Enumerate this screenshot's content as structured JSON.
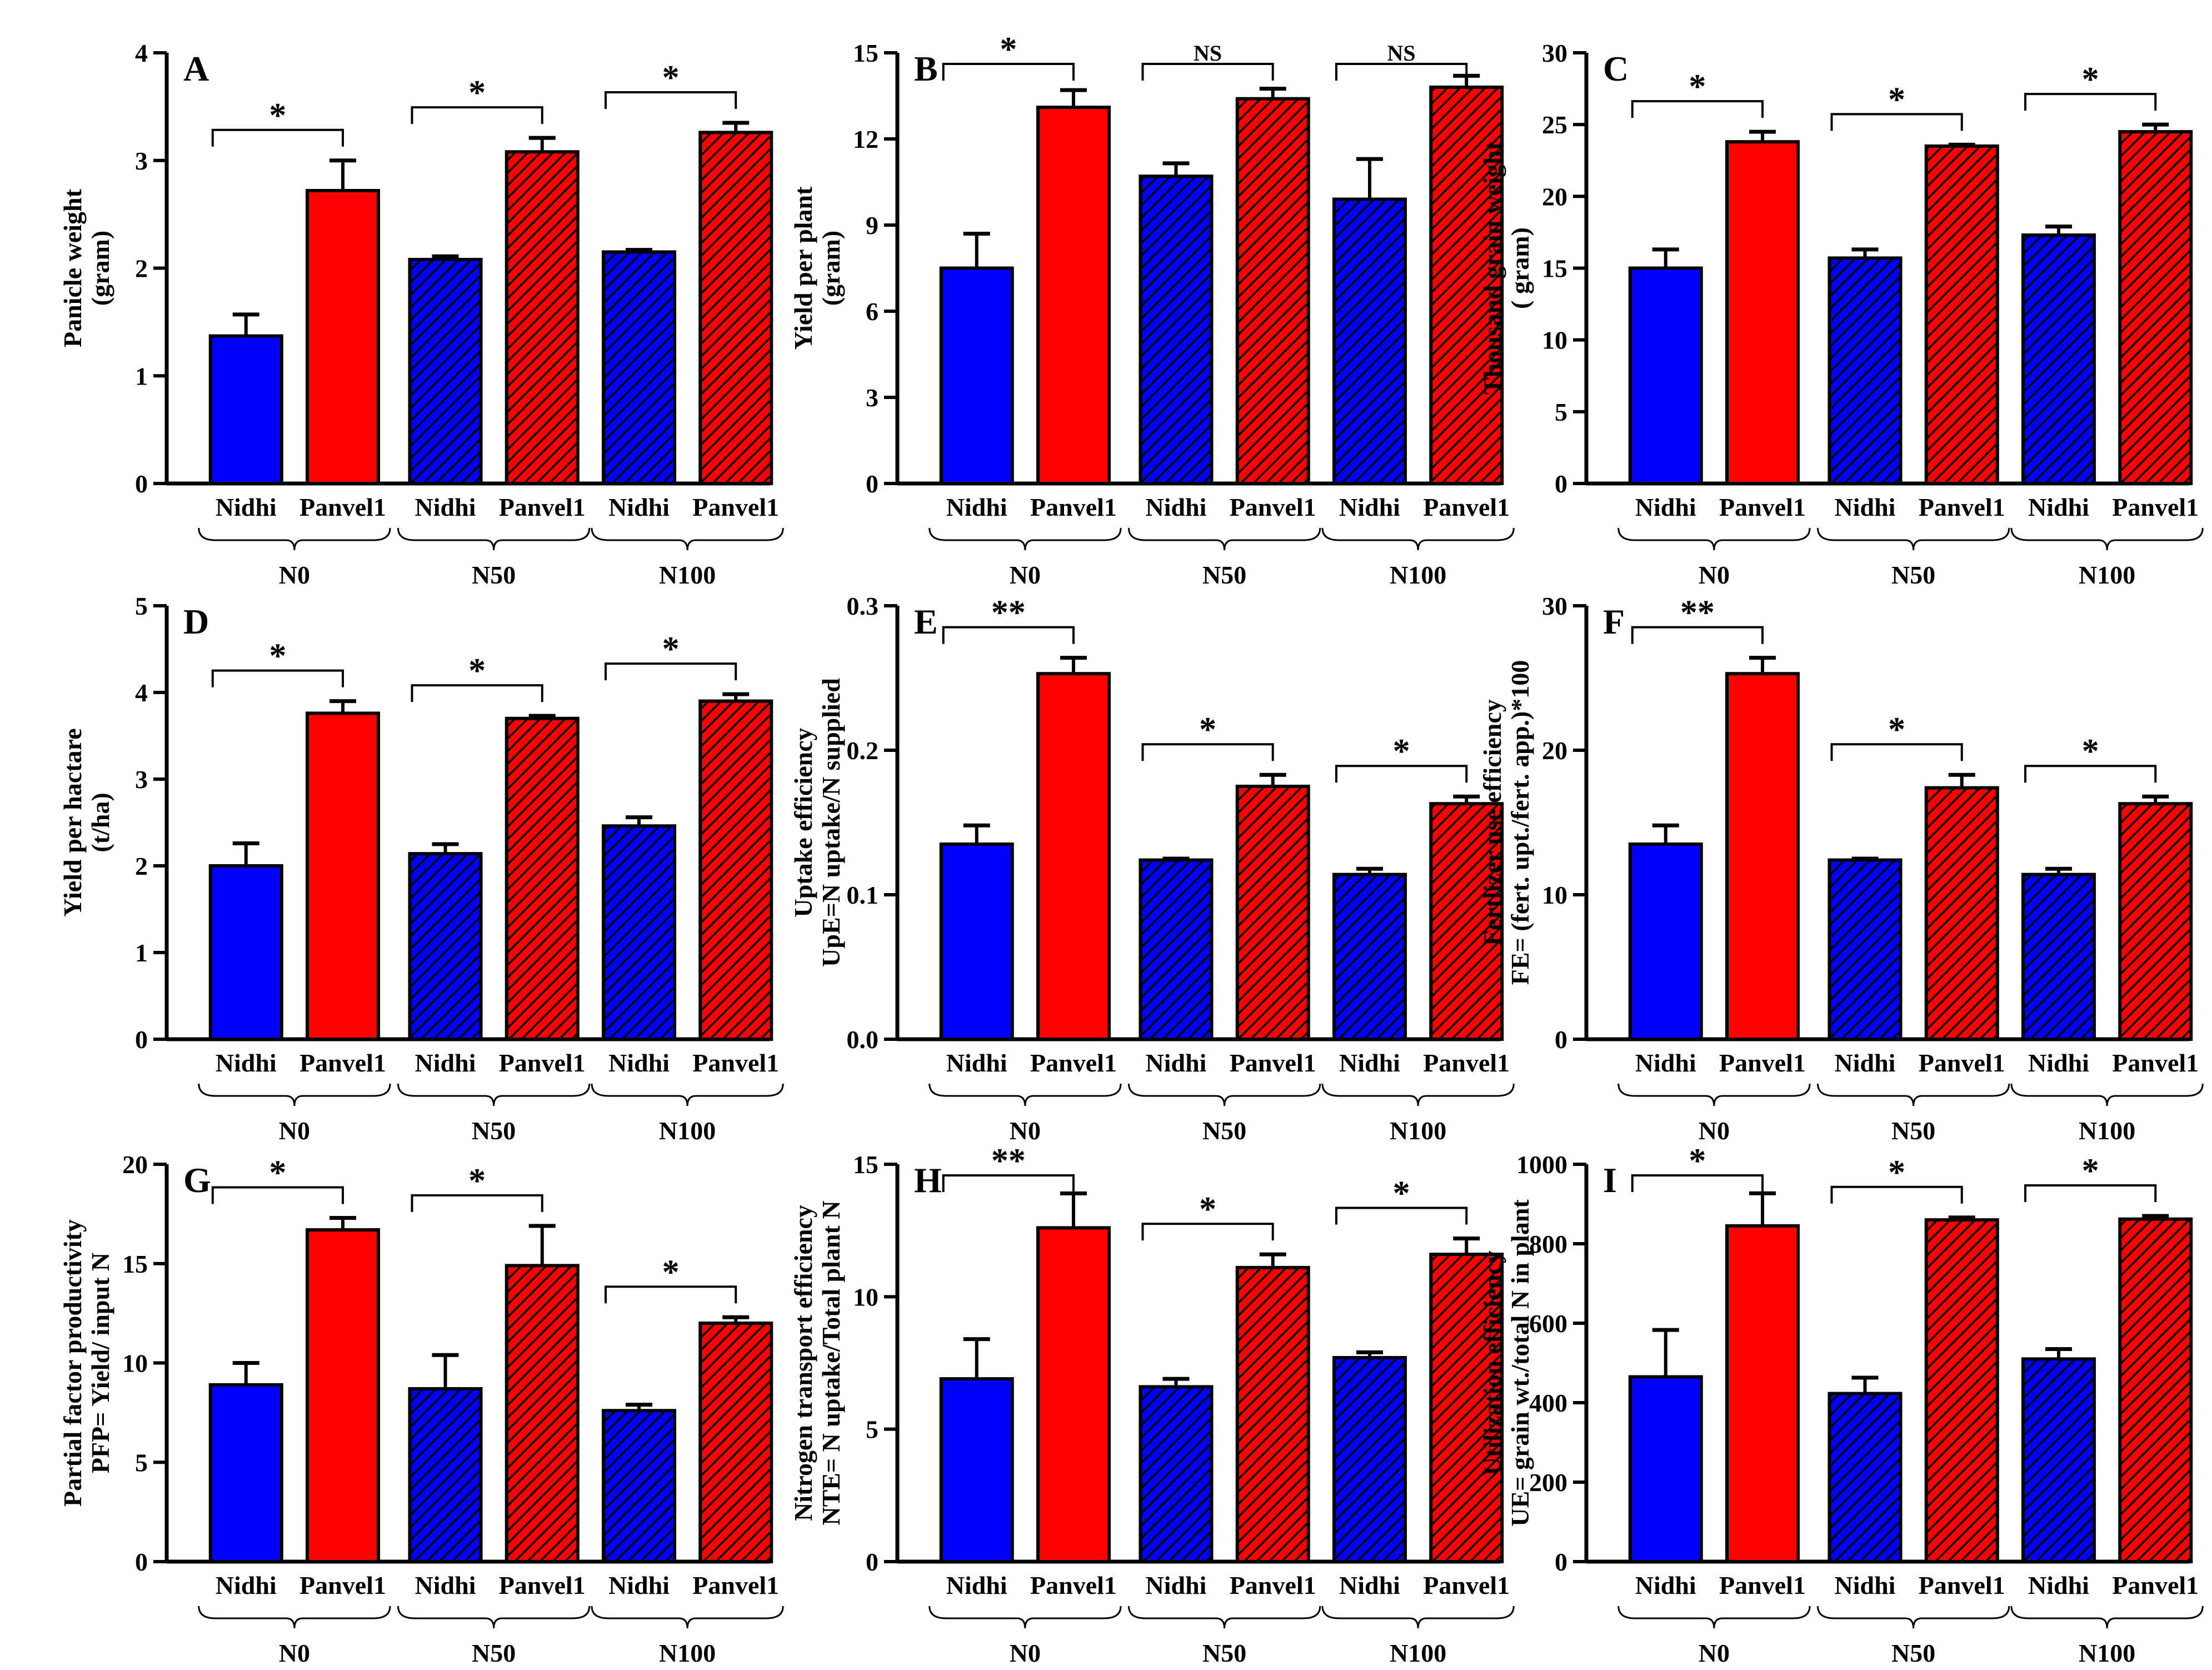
{
  "figure": {
    "colors": {
      "nidhi": "#0000ff",
      "panvel": "#ff0000",
      "axis": "#000000",
      "background": "#ffffff"
    },
    "hatch_note": "N50 and N100 bars are hatched with diagonal black lines"
  },
  "chart_data": [
    {
      "id": "A",
      "type": "bar",
      "panel_label": "A",
      "ylabel": "Panicle weight\n(gram)",
      "ylim": [
        0,
        4
      ],
      "yticks": [
        0,
        1,
        2,
        3,
        4
      ],
      "groups": [
        "N0",
        "N50",
        "N100"
      ],
      "categories": [
        "Nidhi",
        "Panvel1",
        "Nidhi",
        "Panvel1",
        "Nidhi",
        "Panvel1"
      ],
      "values": [
        1.37,
        2.72,
        2.08,
        3.08,
        2.15,
        3.26
      ],
      "errors": [
        0.2,
        0.28,
        0.03,
        0.13,
        0.02,
        0.09
      ],
      "significance": [
        "*",
        "*",
        "*"
      ]
    },
    {
      "id": "B",
      "type": "bar",
      "panel_label": "B",
      "ylabel": "Yield per plant\n(gram)",
      "ylim": [
        0,
        15
      ],
      "yticks": [
        0,
        3,
        6,
        9,
        12,
        15
      ],
      "groups": [
        "N0",
        "N50",
        "N100"
      ],
      "categories": [
        "Nidhi",
        "Panvel1",
        "Nidhi",
        "Panvel1",
        "Nidhi",
        "Panvel1"
      ],
      "values": [
        7.5,
        13.1,
        10.7,
        13.4,
        9.9,
        13.8
      ],
      "errors": [
        1.2,
        0.6,
        0.45,
        0.35,
        1.4,
        0.4
      ],
      "significance": [
        "*",
        "NS",
        "NS"
      ]
    },
    {
      "id": "C",
      "type": "bar",
      "panel_label": "C",
      "ylabel": "Thousand grain weight\n( gram)",
      "ylim": [
        0,
        30
      ],
      "yticks": [
        0,
        5,
        10,
        15,
        20,
        25,
        30
      ],
      "groups": [
        "N0",
        "N50",
        "N100"
      ],
      "categories": [
        "Nidhi",
        "Panvel1",
        "Nidhi",
        "Panvel1",
        "Nidhi",
        "Panvel1"
      ],
      "values": [
        15.0,
        23.8,
        15.7,
        23.5,
        17.3,
        24.5
      ],
      "errors": [
        1.3,
        0.7,
        0.6,
        0.1,
        0.6,
        0.5
      ],
      "significance": [
        "*",
        "*",
        "*"
      ]
    },
    {
      "id": "D",
      "type": "bar",
      "panel_label": "D",
      "ylabel": "Yield per hactare\n(t/ha)",
      "ylim": [
        0,
        5
      ],
      "yticks": [
        0,
        1,
        2,
        3,
        4,
        5
      ],
      "groups": [
        "N0",
        "N50",
        "N100"
      ],
      "categories": [
        "Nidhi",
        "Panvel1",
        "Nidhi",
        "Panvel1",
        "Nidhi",
        "Panvel1"
      ],
      "values": [
        2.0,
        3.76,
        2.14,
        3.7,
        2.46,
        3.9
      ],
      "errors": [
        0.26,
        0.14,
        0.11,
        0.03,
        0.1,
        0.08
      ],
      "significance": [
        "*",
        "*",
        "*"
      ]
    },
    {
      "id": "E",
      "type": "bar",
      "panel_label": "E",
      "ylabel": "Uptake efficiency\nUpE=N uptake/N supplied",
      "ylim": [
        0,
        0.3
      ],
      "yticks": [
        0.0,
        0.1,
        0.2,
        0.3
      ],
      "groups": [
        "N0",
        "N50",
        "N100"
      ],
      "categories": [
        "Nidhi",
        "Panvel1",
        "Nidhi",
        "Panvel1",
        "Nidhi",
        "Panvel1"
      ],
      "values": [
        0.135,
        0.253,
        0.124,
        0.175,
        0.114,
        0.163
      ],
      "errors": [
        0.013,
        0.011,
        0.001,
        0.008,
        0.004,
        0.005
      ],
      "significance": [
        "**",
        "*",
        "*"
      ]
    },
    {
      "id": "F",
      "type": "bar",
      "panel_label": "F",
      "ylabel": "Fertlizer use efficiency\nFE= (fert. upt./fert. app.)*100",
      "ylim": [
        0,
        30
      ],
      "yticks": [
        0,
        10,
        20,
        30
      ],
      "groups": [
        "N0",
        "N50",
        "N100"
      ],
      "categories": [
        "Nidhi",
        "Panvel1",
        "Nidhi",
        "Panvel1",
        "Nidhi",
        "Panvel1"
      ],
      "values": [
        13.5,
        25.3,
        12.4,
        17.4,
        11.4,
        16.3
      ],
      "errors": [
        1.3,
        1.1,
        0.1,
        0.9,
        0.4,
        0.5
      ],
      "significance": [
        "**",
        "*",
        "*"
      ]
    },
    {
      "id": "G",
      "type": "bar",
      "panel_label": "G",
      "ylabel": "Partial factor productivity\nPFP= Yield/ input N",
      "ylim": [
        0,
        20
      ],
      "yticks": [
        0,
        5,
        10,
        15,
        20
      ],
      "groups": [
        "N0",
        "N50",
        "N100"
      ],
      "categories": [
        "Nidhi",
        "Panvel1",
        "Nidhi",
        "Panvel1",
        "Nidhi",
        "Panvel1"
      ],
      "values": [
        8.9,
        16.7,
        8.7,
        14.9,
        7.6,
        12.0
      ],
      "errors": [
        1.1,
        0.6,
        1.7,
        2.0,
        0.3,
        0.3
      ],
      "significance": [
        "*",
        "*",
        "*"
      ]
    },
    {
      "id": "H",
      "type": "bar",
      "panel_label": "H",
      "ylabel": "Nitrogen transport efficiency\nNTE= N uptake/Total plant N",
      "ylim": [
        0,
        15
      ],
      "yticks": [
        0,
        5,
        10,
        15
      ],
      "groups": [
        "N0",
        "N50",
        "N100"
      ],
      "categories": [
        "Nidhi",
        "Panvel1",
        "Nidhi",
        "Panvel1",
        "Nidhi",
        "Panvel1"
      ],
      "values": [
        6.9,
        12.6,
        6.6,
        11.1,
        7.7,
        11.6
      ],
      "errors": [
        1.5,
        1.3,
        0.3,
        0.5,
        0.2,
        0.6
      ],
      "significance": [
        "**",
        "*",
        "*"
      ]
    },
    {
      "id": "I",
      "type": "bar",
      "panel_label": "I",
      "ylabel": "Utilization efficiency\nUE= grain wt./total N in plant",
      "ylim": [
        0,
        1000
      ],
      "yticks": [
        0,
        200,
        400,
        600,
        800,
        1000
      ],
      "groups": [
        "N0",
        "N50",
        "N100"
      ],
      "categories": [
        "Nidhi",
        "Panvel1",
        "Nidhi",
        "Panvel1",
        "Nidhi",
        "Panvel1"
      ],
      "values": [
        465,
        845,
        423,
        860,
        510,
        862
      ],
      "errors": [
        118,
        82,
        40,
        6,
        25,
        8
      ],
      "significance": [
        "*",
        "*",
        "*"
      ]
    }
  ]
}
